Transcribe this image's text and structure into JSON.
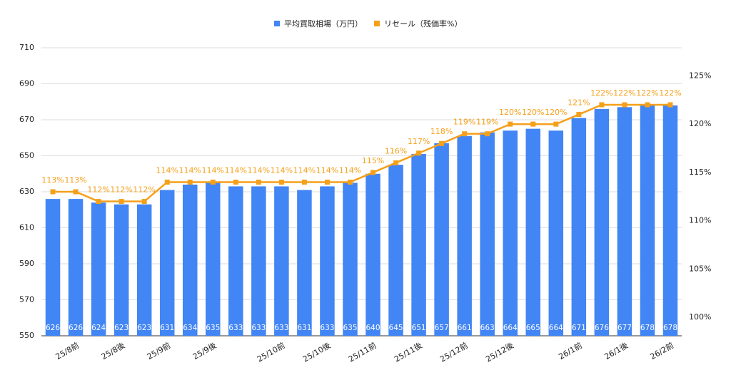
{
  "chart_data": {
    "type": "combo",
    "categories": [
      null,
      "25/8前",
      null,
      "25/8後",
      null,
      "25/9前",
      null,
      "25/9後",
      null,
      null,
      "25/10前",
      null,
      "25/10後",
      null,
      "25/11前",
      null,
      "25/11後",
      null,
      "25/12前",
      null,
      "25/12後",
      null,
      null,
      "26/1前",
      null,
      "26/1後",
      null,
      "26/2前"
    ],
    "series": [
      {
        "name": "平均買取相場（万円）",
        "type": "bar",
        "color": "#4285f4",
        "values": [
          626,
          626,
          624,
          623,
          623,
          631,
          634,
          635,
          633,
          633,
          633,
          631,
          633,
          635,
          640,
          645,
          651,
          657,
          661,
          663,
          664,
          665,
          664,
          671,
          676,
          677,
          678,
          678
        ]
      },
      {
        "name": "リセール（残価率%）",
        "type": "line",
        "color": "#f5a01a",
        "axis": "y2",
        "values": [
          113,
          113,
          112,
          112,
          112,
          114,
          114,
          114,
          114,
          114,
          114,
          114,
          114,
          114,
          115,
          116,
          117,
          118,
          119,
          119,
          120,
          120,
          120,
          121,
          122,
          122,
          122,
          122
        ],
        "value_labels": [
          "113%",
          "113%",
          "112%",
          "112%",
          "112%",
          "114%",
          "114%",
          "114%",
          "114%",
          "114%",
          "114%",
          "114%",
          "114%",
          "114%",
          "115%",
          "116%",
          "117%",
          "118%",
          "119%",
          "119%",
          "120%",
          "120%",
          "120%",
          "121%",
          "122%",
          "122%",
          "122%",
          "122%"
        ]
      }
    ],
    "ylim": [
      550,
      710
    ],
    "yticks": [
      550,
      570,
      590,
      610,
      630,
      650,
      670,
      690,
      710
    ],
    "y2lim": [
      98.1,
      127.9
    ],
    "y2ticks": [
      {
        "value": 100,
        "label": "100%"
      },
      {
        "value": 105,
        "label": "105%"
      },
      {
        "value": 110,
        "label": "110%"
      },
      {
        "value": 115,
        "label": "115%"
      },
      {
        "value": 120,
        "label": "120%"
      },
      {
        "value": 125,
        "label": "125%"
      }
    ],
    "grid": true,
    "legend": "top"
  }
}
